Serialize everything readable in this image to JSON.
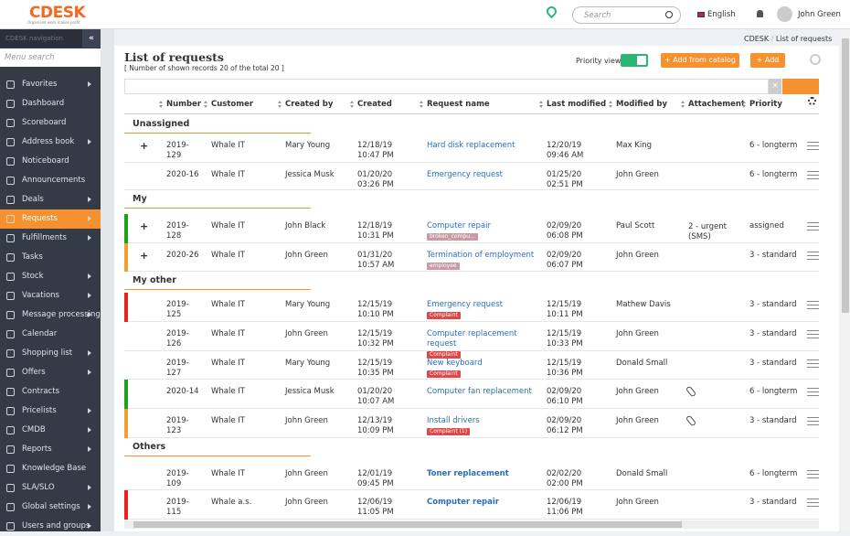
{
  "header": {
    "logo": "CDESK",
    "tagline": "Organised work makes profit",
    "search_placeholder": "Search",
    "language": "English",
    "user": "John Green"
  },
  "sidebar": {
    "title": "CDESK navigation",
    "search_placeholder": "Menu search",
    "active": 7,
    "items": [
      {
        "label": "Favorites",
        "submenu": true
      },
      {
        "label": "Dashboard"
      },
      {
        "label": "Scoreboard"
      },
      {
        "label": "Address book",
        "submenu": true
      },
      {
        "label": "Noticeboard"
      },
      {
        "label": "Announcements"
      },
      {
        "label": "Deals",
        "submenu": true
      },
      {
        "label": "Requests",
        "submenu": true
      },
      {
        "label": "Fulfillments",
        "submenu": true
      },
      {
        "label": "Tasks"
      },
      {
        "label": "Stock",
        "submenu": true
      },
      {
        "label": "Vacations",
        "submenu": true
      },
      {
        "label": "Message processing",
        "submenu": true
      },
      {
        "label": "Calendar"
      },
      {
        "label": "Shopping list",
        "submenu": true
      },
      {
        "label": "Offers",
        "submenu": true
      },
      {
        "label": "Contracts"
      },
      {
        "label": "Pricelists",
        "submenu": true
      },
      {
        "label": "CMDB",
        "submenu": true
      },
      {
        "label": "Reports",
        "submenu": true
      },
      {
        "label": "Knowledge Base"
      },
      {
        "label": "SLA/SLO",
        "submenu": true
      },
      {
        "label": "Global settings",
        "submenu": true
      },
      {
        "label": "Users and groups",
        "submenu": true
      }
    ]
  },
  "breadcrumb": [
    "CDESK",
    "List of requests"
  ],
  "page": {
    "title": "List of requests",
    "subtitle": "[ Number of shown records 20 of the total 20 ]",
    "priority_view": "Priority view",
    "add_from_catalog": "+ Add from catalog",
    "add": "+ Add"
  },
  "table": {
    "columns": {
      "number": "Number",
      "customer": "Customer",
      "created_by": "Created by",
      "created": "Created",
      "request": "Request name",
      "last_modified": "Last modified",
      "modified_by": "Modified by",
      "attachement": "Attachement",
      "priority": "Priority"
    },
    "groups": [
      {
        "name": "Unassigned",
        "rows": [
          {
            "expand": true,
            "number": "2019-129",
            "customer": "Whale IT",
            "created_by": "Mary Young",
            "created": "12/18/19 10:47 PM",
            "request": "Hard disk replacement",
            "last_modified": "12/20/19 09:46 AM",
            "modified_by": "Max King",
            "priority": "6 - longterm"
          },
          {
            "number": "2020-16",
            "customer": "Whale IT",
            "created_by": "Jessica Musk",
            "created": "01/20/20 03:26 PM",
            "request": "Emergency request",
            "last_modified": "01/25/20 02:51 PM",
            "modified_by": "John Green",
            "priority": "6 - longterm"
          }
        ]
      },
      {
        "name": "My",
        "rows": [
          {
            "expand": true,
            "flag": "#1aa31a",
            "number": "2019-128",
            "customer": "Whale IT",
            "created_by": "John Black",
            "created": "12/18/19 10:31 PM",
            "request": "Computer repair",
            "tag": "broken_compu...",
            "tag_color": "#c79aa6",
            "last_modified": "02/09/20 06:08 PM",
            "modified_by": "Paul Scott",
            "attachement": "2 - urgent (SMS)",
            "priority": "assigned"
          },
          {
            "expand": true,
            "flag": "#f0a030",
            "number": "2020-26",
            "customer": "Whale IT",
            "created_by": "John Green",
            "created": "01/31/20 10:57 AM",
            "request": "Termination of employment",
            "tag": "employee",
            "tag_color": "#c79aa6",
            "last_modified": "02/09/20 06:07 PM",
            "modified_by": "John Green",
            "priority": "3 - standard"
          }
        ]
      },
      {
        "name": "My other",
        "rows": [
          {
            "flag": "#e8231f",
            "number": "2019-125",
            "customer": "Whale IT",
            "created_by": "Mary Young",
            "created": "12/15/19 10:10 PM",
            "request": "Emergency request",
            "tag": "Complaint",
            "tag_color": "#e04848",
            "last_modified": "12/15/19 10:11 PM",
            "modified_by": "Mathew Davis",
            "priority": "3 - standard"
          },
          {
            "number": "2019-126",
            "customer": "Whale IT",
            "created_by": "John Green",
            "created": "12/15/19 10:32 PM",
            "request": "Computer replacement request",
            "tag": "Complaint",
            "tag_color": "#e04848",
            "last_modified": "12/15/19 10:33 PM",
            "modified_by": "John Green",
            "priority": "3 - standard"
          },
          {
            "number": "2019-127",
            "customer": "Whale IT",
            "created_by": "Mary Young",
            "created": "12/15/19 10:35 PM",
            "request": "New keyboard",
            "tag": "Complaint",
            "tag_color": "#e04848",
            "last_modified": "12/15/19 10:36 PM",
            "modified_by": "Donald Small",
            "priority": "3 - standard"
          },
          {
            "flag": "#1aa31a",
            "number": "2020-14",
            "customer": "Whale IT",
            "created_by": "Jessica Musk",
            "created": "01/20/20 10:07 AM",
            "request": "Computer fan replacement",
            "last_modified": "02/09/20 06:10 PM",
            "modified_by": "John Green",
            "has_attachment": true,
            "priority": "6 - longterm"
          },
          {
            "flag": "#f0a030",
            "number": "2019-123",
            "customer": "Whale IT",
            "created_by": "John Green",
            "created": "12/13/19 10:09 PM",
            "request": "Install drivers",
            "tag": "Complaint (1)",
            "tag_color": "#e04848",
            "last_modified": "02/09/20 06:12 PM",
            "modified_by": "John Green",
            "has_attachment": true,
            "priority": "3 - standard"
          }
        ]
      },
      {
        "name": "Others",
        "rows": [
          {
            "number": "2019-109",
            "customer": "Whale IT",
            "created_by": "John Green",
            "created": "12/01/19 09:45 PM",
            "request": "Toner replacement",
            "bold": true,
            "last_modified": "02/02/20 02:00 PM",
            "modified_by": "Donald Small",
            "priority": "6 - longterm"
          },
          {
            "flag": "#e8231f",
            "number": "2019-115",
            "customer": "Whale a.s.",
            "created_by": "John Green",
            "created": "12/06/19 11:05 PM",
            "request": "Computer repair",
            "bold": true,
            "last_modified": "12/06/19 11:06 PM",
            "modified_by": "John Green",
            "priority": "3 - standard"
          }
        ]
      }
    ]
  }
}
